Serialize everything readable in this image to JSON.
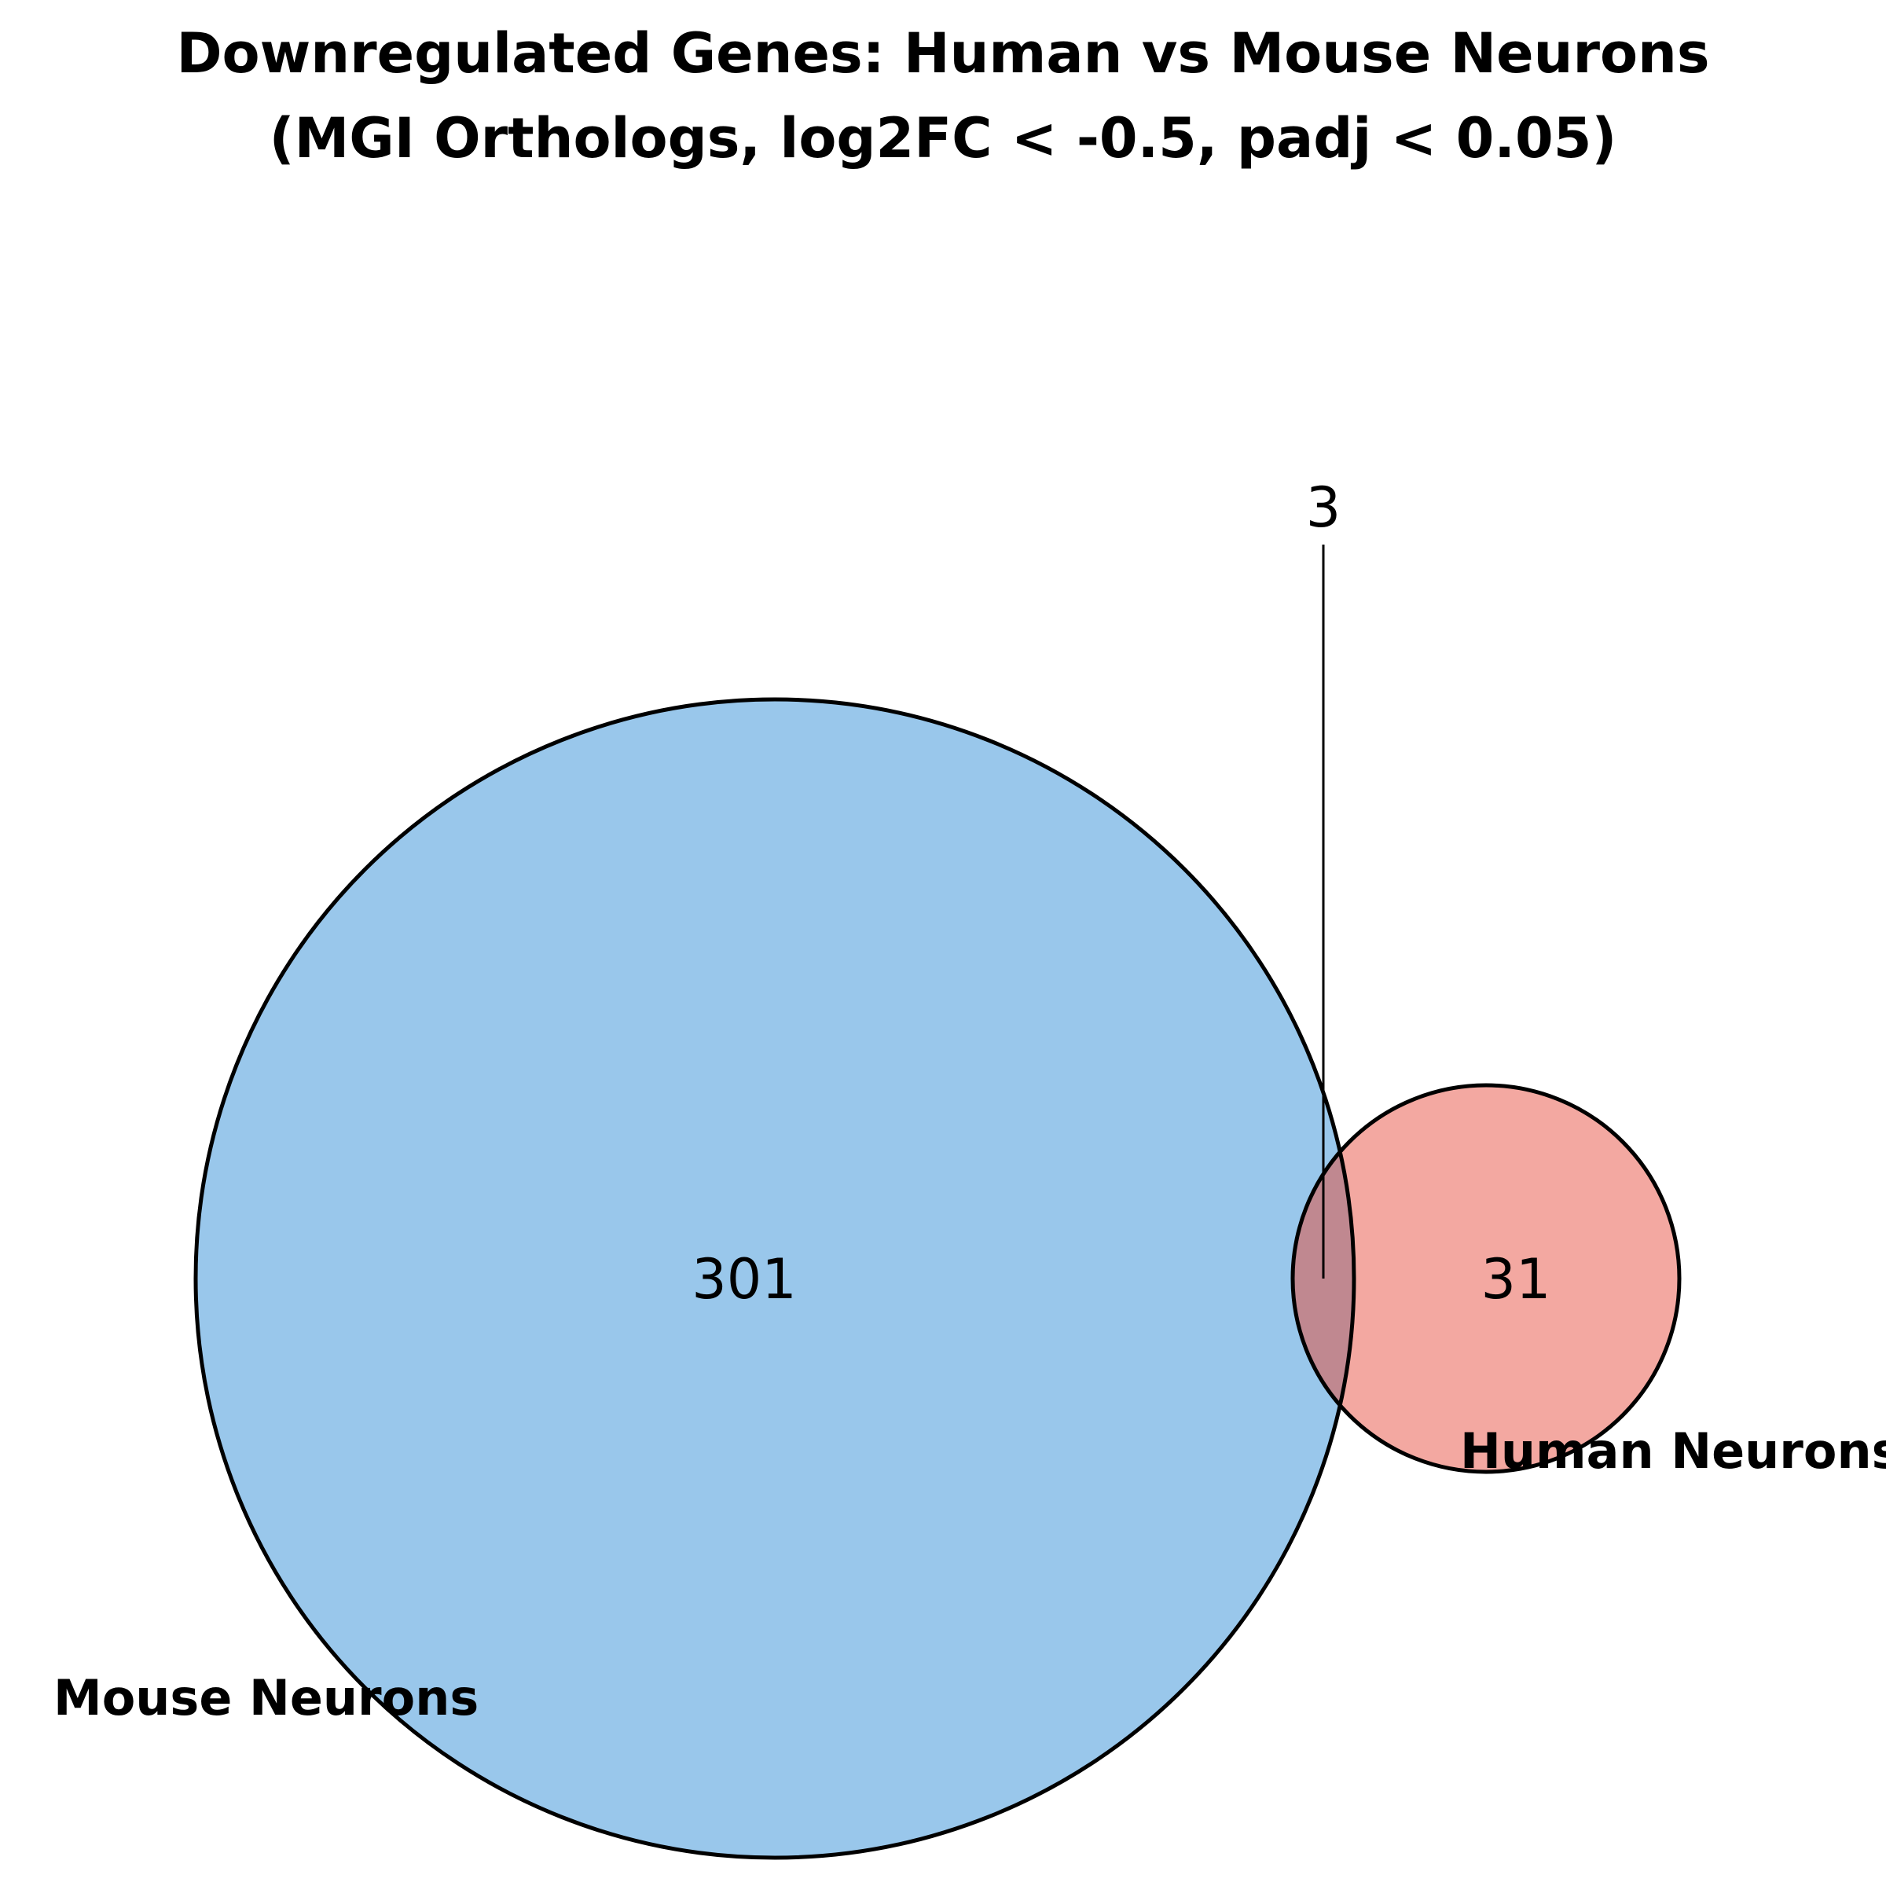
{
  "title": {
    "line1": "Downregulated Genes: Human vs Mouse Neurons",
    "line2": "(MGI Orthologs, log2FC < -0.5, padj < 0.05)"
  },
  "sets": {
    "mouse": {
      "label": "Mouse Neurons",
      "only_count": "301",
      "color": "#87bde8"
    },
    "human": {
      "label": "Human Neurons",
      "only_count": "31",
      "color": "#f0928a"
    },
    "overlap": {
      "count": "3",
      "color": "#c08890"
    }
  }
}
